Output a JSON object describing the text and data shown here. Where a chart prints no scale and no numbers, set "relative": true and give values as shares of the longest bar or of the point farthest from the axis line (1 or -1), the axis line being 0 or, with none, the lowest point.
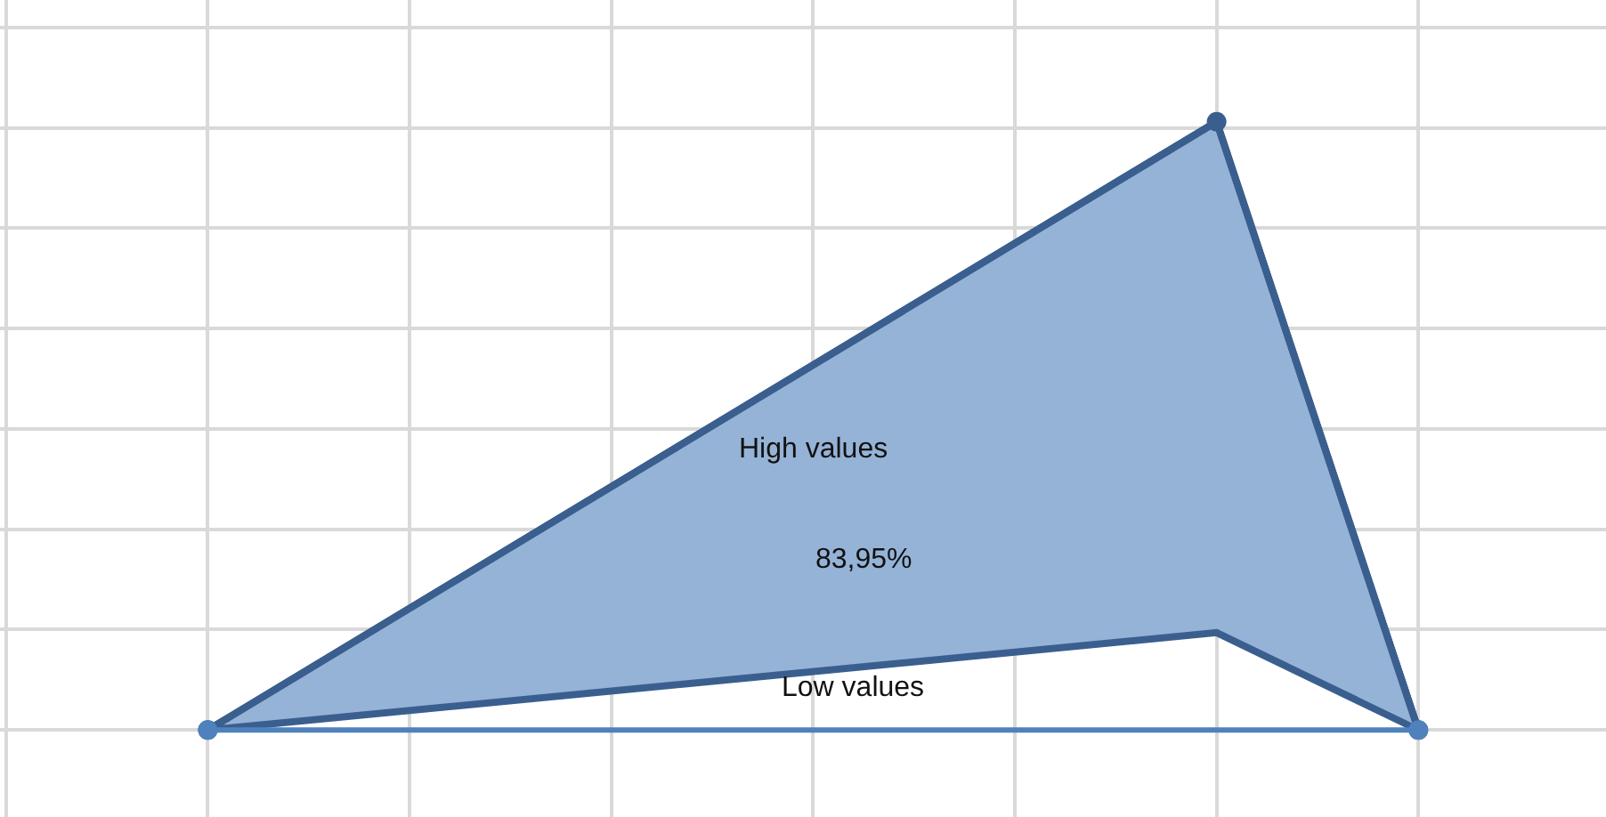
{
  "chart_data": {
    "type": "line",
    "relative": true,
    "categories": [
      null,
      null,
      null,
      null,
      null,
      null,
      null,
      null
    ],
    "series": [
      {
        "color": "#3a5f8f",
        "values": [
          null,
          0,
          null,
          null,
          null,
          null,
          1,
          0
        ],
        "lower": [
          null,
          0,
          null,
          null,
          null,
          null,
          0.16,
          0
        ],
        "upper": [
          null,
          0,
          null,
          null,
          null,
          null,
          1,
          0
        ]
      },
      {
        "color": "#4f81bd",
        "values": [
          null,
          0,
          null,
          null,
          null,
          null,
          null,
          0
        ]
      }
    ],
    "annotations": [
      "High values",
      "83,95%",
      "Low values"
    ],
    "grid": true,
    "marker": "circle",
    "line_style": "solid"
  }
}
